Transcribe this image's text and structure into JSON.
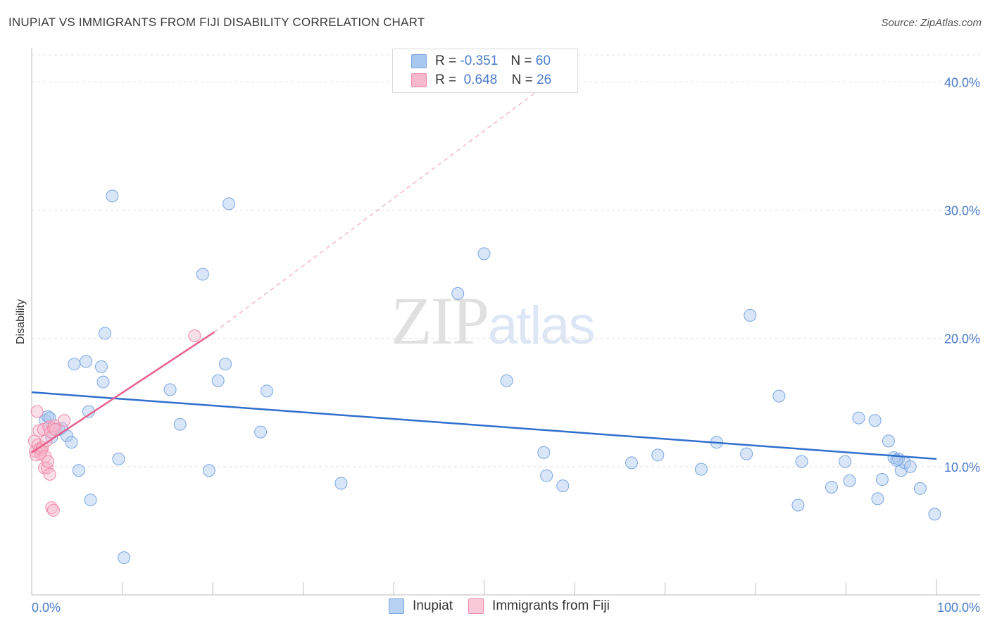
{
  "title": "INUPIAT VS IMMIGRANTS FROM FIJI DISABILITY CORRELATION CHART",
  "source": "Source: ZipAtlas.com",
  "watermark": {
    "zip": "ZIP",
    "atlas": "atlas"
  },
  "legend": {
    "rows": [
      {
        "r_label": "R =",
        "r_value": "-0.351",
        "n_label": "N =",
        "n_value": "60",
        "color": "#a9c8f0"
      },
      {
        "r_label": "R =",
        "r_value": "0.648",
        "n_label": "N =",
        "n_value": "26",
        "color": "#f6b8cc"
      }
    ]
  },
  "bottom_legend": [
    {
      "label": "Inupiat",
      "color": "#b8d2f4"
    },
    {
      "label": "Immigrants from Fiji",
      "color": "#f9c9d8"
    }
  ],
  "chart_data": {
    "type": "scatter",
    "title": "INUPIAT VS IMMIGRANTS FROM FIJI DISABILITY CORRELATION CHART",
    "xlabel": "",
    "ylabel": "Disability",
    "xlim": [
      0,
      100
    ],
    "ylim": [
      0,
      43
    ],
    "x_tick_labels": [
      "0.0%",
      "100.0%"
    ],
    "y_ticks": [
      10,
      20,
      30,
      40
    ],
    "y_tick_labels": [
      "10.0%",
      "20.0%",
      "30.0%",
      "40.0%"
    ],
    "grid": true,
    "series": [
      {
        "name": "Inupiat",
        "color": "#7aa6e0",
        "trend": {
          "x": [
            0,
            100
          ],
          "y": [
            15.8,
            10.6
          ],
          "color": "#2f6fce"
        },
        "points": [
          [
            1.5,
            13.6
          ],
          [
            1.8,
            13.9
          ],
          [
            2.0,
            13.8
          ],
          [
            2.2,
            12.3
          ],
          [
            3.0,
            12.9
          ],
          [
            3.3,
            13.0
          ],
          [
            3.9,
            12.4
          ],
          [
            4.4,
            11.9
          ],
          [
            4.7,
            18.0
          ],
          [
            5.2,
            9.7
          ],
          [
            6.0,
            18.2
          ],
          [
            6.3,
            14.3
          ],
          [
            6.5,
            7.4
          ],
          [
            7.7,
            17.8
          ],
          [
            7.9,
            16.6
          ],
          [
            8.1,
            20.4
          ],
          [
            8.9,
            31.1
          ],
          [
            9.6,
            10.6
          ],
          [
            10.2,
            2.9
          ],
          [
            15.3,
            16.0
          ],
          [
            16.4,
            13.3
          ],
          [
            18.9,
            25.0
          ],
          [
            19.6,
            9.7
          ],
          [
            20.6,
            16.7
          ],
          [
            21.4,
            18.0
          ],
          [
            21.8,
            30.5
          ],
          [
            25.3,
            12.7
          ],
          [
            26.0,
            15.9
          ],
          [
            34.2,
            8.7
          ],
          [
            47.1,
            23.5
          ],
          [
            50.0,
            26.6
          ],
          [
            52.5,
            16.7
          ],
          [
            56.6,
            11.1
          ],
          [
            56.9,
            9.3
          ],
          [
            58.7,
            8.5
          ],
          [
            66.3,
            10.3
          ],
          [
            69.2,
            10.9
          ],
          [
            74.0,
            9.8
          ],
          [
            75.7,
            11.9
          ],
          [
            79.0,
            11.0
          ],
          [
            79.4,
            21.8
          ],
          [
            82.6,
            15.5
          ],
          [
            84.7,
            7.0
          ],
          [
            85.1,
            10.4
          ],
          [
            88.4,
            8.4
          ],
          [
            89.9,
            10.4
          ],
          [
            90.4,
            8.9
          ],
          [
            91.4,
            13.8
          ],
          [
            93.2,
            13.6
          ],
          [
            93.5,
            7.5
          ],
          [
            94.0,
            9.0
          ],
          [
            94.7,
            12.0
          ],
          [
            95.3,
            10.7
          ],
          [
            95.8,
            10.6
          ],
          [
            96.1,
            9.7
          ],
          [
            96.5,
            10.3
          ],
          [
            97.1,
            10.0
          ],
          [
            98.2,
            8.3
          ],
          [
            99.8,
            6.3
          ],
          [
            95.6,
            10.5
          ]
        ]
      },
      {
        "name": "Immigrants from Fiji",
        "color": "#f08aaa",
        "trend": {
          "x": [
            0,
            20.2
          ],
          "y": [
            11.1,
            20.5
          ],
          "dash_to": {
            "x": 58.4,
            "y": 40.6
          },
          "color": "#e8608b"
        },
        "points": [
          [
            0.3,
            12.0
          ],
          [
            0.4,
            11.2
          ],
          [
            0.5,
            10.9
          ],
          [
            0.6,
            14.3
          ],
          [
            0.7,
            11.7
          ],
          [
            0.8,
            12.8
          ],
          [
            0.9,
            11.4
          ],
          [
            1.0,
            11.0
          ],
          [
            1.1,
            11.3
          ],
          [
            1.2,
            11.5
          ],
          [
            1.3,
            12.9
          ],
          [
            1.4,
            9.9
          ],
          [
            1.5,
            10.8
          ],
          [
            1.6,
            12.0
          ],
          [
            1.7,
            9.9
          ],
          [
            1.8,
            10.4
          ],
          [
            1.9,
            13.1
          ],
          [
            2.0,
            9.4
          ],
          [
            2.1,
            12.7
          ],
          [
            2.2,
            6.8
          ],
          [
            2.4,
            13.0
          ],
          [
            2.5,
            13.2
          ],
          [
            2.6,
            12.9
          ],
          [
            2.4,
            6.6
          ],
          [
            3.6,
            13.6
          ],
          [
            18.0,
            20.2
          ]
        ]
      }
    ]
  }
}
